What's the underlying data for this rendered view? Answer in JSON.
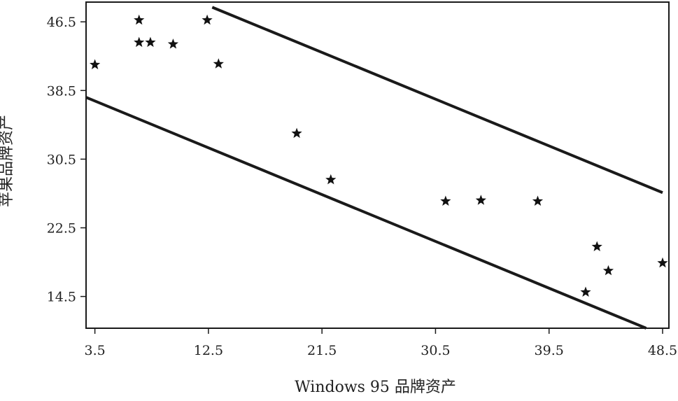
{
  "chart_data": {
    "type": "scatter",
    "title": "",
    "xlabel": "Windows 95 品牌资产",
    "ylabel": "苹果品牌资产",
    "xlim": [
      2.8,
      49.0
    ],
    "ylim": [
      10.8,
      48.8
    ],
    "xticks": [
      3.5,
      12.5,
      21.5,
      30.5,
      39.5,
      48.5
    ],
    "xtick_labels": [
      "3.5",
      "12.5",
      "21.5",
      "30.5",
      "39.5",
      "48.5"
    ],
    "yticks": [
      14.5,
      22.5,
      30.5,
      38.5,
      46.5
    ],
    "ytick_labels": [
      "14.5",
      "22.5",
      "30.5",
      "38.5",
      "46.5"
    ],
    "marker": "star",
    "grid": false,
    "points": [
      {
        "x": 3.5,
        "y": 41.5
      },
      {
        "x": 7.0,
        "y": 46.7
      },
      {
        "x": 7.0,
        "y": 44.1
      },
      {
        "x": 7.9,
        "y": 44.1
      },
      {
        "x": 9.7,
        "y": 43.9
      },
      {
        "x": 12.4,
        "y": 46.7
      },
      {
        "x": 13.3,
        "y": 41.6
      },
      {
        "x": 19.5,
        "y": 33.5
      },
      {
        "x": 22.2,
        "y": 28.1
      },
      {
        "x": 31.3,
        "y": 25.6
      },
      {
        "x": 34.1,
        "y": 25.7
      },
      {
        "x": 38.6,
        "y": 25.6
      },
      {
        "x": 42.4,
        "y": 15.0
      },
      {
        "x": 43.3,
        "y": 20.3
      },
      {
        "x": 44.2,
        "y": 17.5
      },
      {
        "x": 48.5,
        "y": 18.4
      }
    ],
    "lines": [
      {
        "x": [
          12.8,
          48.5
        ],
        "y": [
          48.2,
          26.6
        ]
      },
      {
        "x": [
          2.8,
          47.2
        ],
        "y": [
          37.7,
          10.8
        ]
      }
    ]
  }
}
